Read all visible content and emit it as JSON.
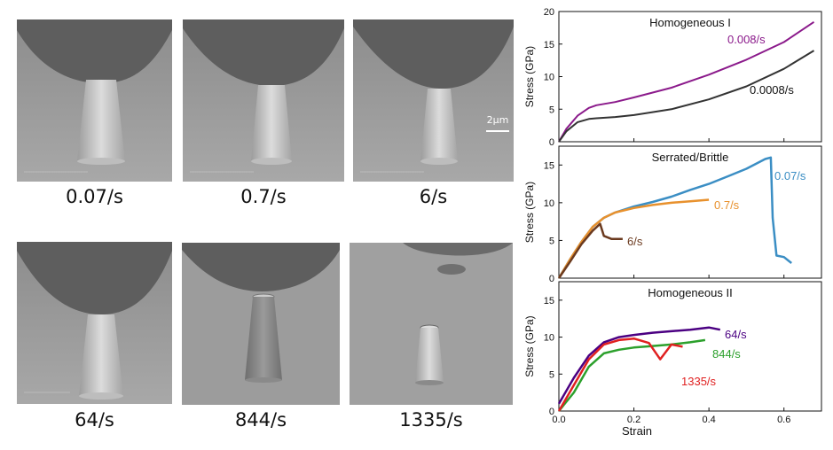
{
  "panels": [
    {
      "label": "0.07/s",
      "scale_bar": ""
    },
    {
      "label": "0.7/s",
      "scale_bar": ""
    },
    {
      "label": "6/s",
      "scale_bar": "2μm"
    },
    {
      "label": "64/s",
      "scale_bar": ""
    },
    {
      "label": "844/s",
      "scale_bar": ""
    },
    {
      "label": "1335/s",
      "scale_bar": ""
    }
  ],
  "chart_data": [
    {
      "type": "line",
      "title": "Homogeneous I",
      "xlabel": "",
      "ylabel": "Stress (GPa)",
      "xlim": [
        0,
        0.7
      ],
      "ylim": [
        0,
        20
      ],
      "yticks": [
        "0",
        "5",
        "10",
        "15",
        "20"
      ],
      "series": [
        {
          "name": "0.008/s",
          "color": "#8b1a8b",
          "x": [
            0,
            0.02,
            0.05,
            0.08,
            0.1,
            0.15,
            0.2,
            0.3,
            0.4,
            0.5,
            0.6,
            0.68
          ],
          "y": [
            0,
            2.0,
            4.0,
            5.2,
            5.6,
            6.1,
            6.8,
            8.3,
            10.3,
            12.6,
            15.3,
            18.4
          ]
        },
        {
          "name": "0.0008/s",
          "color": "#333333",
          "x": [
            0,
            0.02,
            0.05,
            0.08,
            0.1,
            0.15,
            0.2,
            0.3,
            0.4,
            0.5,
            0.6,
            0.68
          ],
          "y": [
            0,
            1.6,
            3.0,
            3.5,
            3.6,
            3.8,
            4.1,
            5.0,
            6.5,
            8.5,
            11.2,
            14.0
          ]
        }
      ]
    },
    {
      "type": "line",
      "title": "Serrated/Brittle",
      "xlabel": "",
      "ylabel": "Stress (GPa)",
      "xlim": [
        0,
        0.7
      ],
      "ylim": [
        0,
        17.5
      ],
      "yticks": [
        "0",
        "5",
        "10",
        "15"
      ],
      "series": [
        {
          "name": "0.07/s",
          "color": "#3b8ec4",
          "x": [
            0,
            0.03,
            0.06,
            0.09,
            0.12,
            0.15,
            0.2,
            0.25,
            0.3,
            0.35,
            0.4,
            0.45,
            0.5,
            0.55,
            0.565,
            0.57,
            0.58,
            0.6,
            0.62
          ],
          "y": [
            0,
            2.5,
            4.8,
            6.8,
            8.0,
            8.7,
            9.5,
            10.1,
            10.8,
            11.7,
            12.5,
            13.5,
            14.5,
            15.8,
            16.0,
            8.0,
            3.0,
            2.8,
            2.0
          ]
        },
        {
          "name": "0.7/s",
          "color": "#e8912d",
          "x": [
            0,
            0.03,
            0.06,
            0.09,
            0.12,
            0.15,
            0.2,
            0.25,
            0.3,
            0.35,
            0.4
          ],
          "y": [
            0,
            2.5,
            4.8,
            6.8,
            8.0,
            8.7,
            9.3,
            9.7,
            10.0,
            10.2,
            10.4
          ]
        },
        {
          "name": "6/s",
          "color": "#6b3a1f",
          "x": [
            0,
            0.03,
            0.06,
            0.09,
            0.11,
            0.12,
            0.14,
            0.17
          ],
          "y": [
            0,
            2.2,
            4.5,
            6.3,
            7.2,
            5.6,
            5.2,
            5.2
          ]
        }
      ]
    },
    {
      "type": "line",
      "title": "Homogeneous II",
      "xlabel": "Strain",
      "ylabel": "Stress (GPa)",
      "xlim": [
        0,
        0.7
      ],
      "ylim": [
        0,
        17.5
      ],
      "xticks": [
        "0.0",
        "0.2",
        "0.4",
        "0.6"
      ],
      "yticks": [
        "0",
        "5",
        "10",
        "15"
      ],
      "series": [
        {
          "name": "64/s",
          "color": "#4b0082",
          "x": [
            0,
            0.04,
            0.08,
            0.12,
            0.16,
            0.2,
            0.25,
            0.3,
            0.35,
            0.4,
            0.43
          ],
          "y": [
            1,
            4.5,
            7.5,
            9.3,
            10.0,
            10.3,
            10.6,
            10.8,
            11.0,
            11.3,
            11.0
          ]
        },
        {
          "name": "844/s",
          "color": "#2ca02c",
          "x": [
            0,
            0.04,
            0.08,
            0.12,
            0.16,
            0.2,
            0.25,
            0.3,
            0.35,
            0.39
          ],
          "y": [
            0,
            2.5,
            6.0,
            7.8,
            8.3,
            8.6,
            8.8,
            9.0,
            9.3,
            9.6
          ]
        },
        {
          "name": "1335/s",
          "color": "#e02020",
          "x": [
            0,
            0.04,
            0.08,
            0.12,
            0.16,
            0.2,
            0.24,
            0.27,
            0.3,
            0.33
          ],
          "y": [
            0,
            3.5,
            7.0,
            9.0,
            9.6,
            9.8,
            9.2,
            7.0,
            9.0,
            8.7
          ]
        }
      ]
    }
  ]
}
